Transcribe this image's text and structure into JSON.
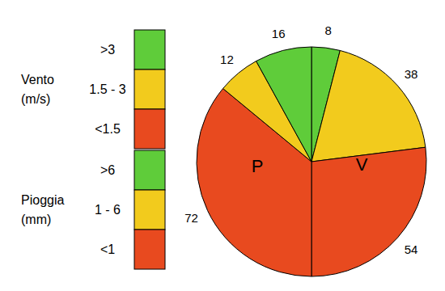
{
  "chart_data": {
    "type": "pie",
    "series": [
      {
        "name": "V",
        "label": "Vento (m/s)",
        "categories": [
          ">3",
          "1.5 - 3",
          "<1.5"
        ],
        "colors": [
          "#5fcc3a",
          "#f2cb1d",
          "#e84a1f"
        ],
        "values": [
          8,
          38,
          54
        ]
      },
      {
        "name": "P",
        "label": "Pioggia (mm)",
        "categories": [
          ">6",
          "1 - 6",
          "<1"
        ],
        "colors": [
          "#5fcc3a",
          "#f2cb1d",
          "#e84a1f"
        ],
        "values": [
          16,
          12,
          72
        ]
      }
    ]
  }
}
